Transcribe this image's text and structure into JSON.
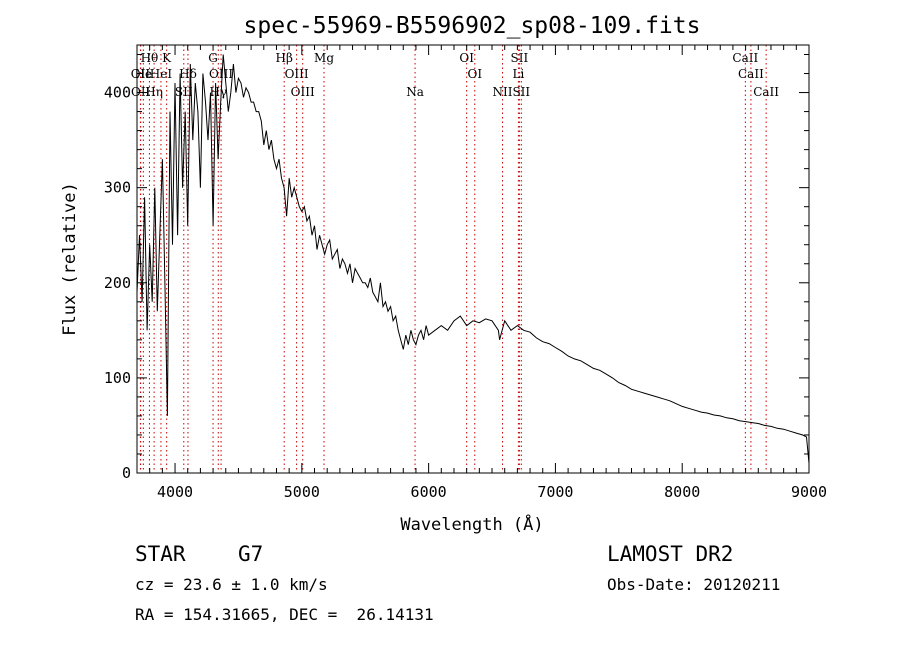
{
  "chart_data": {
    "type": "line",
    "title": "spec-55969-B5596902_sp08-109.fits",
    "xlabel": "Wavelength (Å)",
    "ylabel": "Flux (relative)",
    "xlim": [
      3700,
      9000
    ],
    "ylim": [
      0,
      450
    ],
    "xticks": [
      "4000",
      "5000",
      "6000",
      "7000",
      "8000",
      "9000"
    ],
    "xtick_values": [
      4000,
      5000,
      6000,
      7000,
      8000,
      9000
    ],
    "yticks": [
      "0",
      "100",
      "200",
      "300",
      "400"
    ],
    "ytick_values": [
      0,
      100,
      200,
      300,
      400
    ],
    "grid": false,
    "line_color": "#000000",
    "marker_color": "#cc0000",
    "series": [
      {
        "x": [
          3700,
          3720,
          3740,
          3760,
          3780,
          3800,
          3820,
          3840,
          3860,
          3880,
          3900,
          3920,
          3940,
          3960,
          3980,
          4000,
          4020,
          4040,
          4060,
          4080,
          4100,
          4120,
          4140,
          4160,
          4180,
          4200,
          4220,
          4240,
          4260,
          4280,
          4300,
          4320,
          4340,
          4360,
          4380,
          4400,
          4420,
          4440,
          4460,
          4480,
          4500,
          4520,
          4540,
          4560,
          4580,
          4600,
          4620,
          4640,
          4660,
          4680,
          4700,
          4720,
          4740,
          4760,
          4780,
          4800,
          4820,
          4840,
          4860,
          4880,
          4900,
          4920,
          4940,
          4960,
          4980,
          5000,
          5020,
          5040,
          5060,
          5080,
          5100,
          5120,
          5140,
          5160,
          5180,
          5200,
          5220,
          5240,
          5260,
          5280,
          5300,
          5320,
          5340,
          5360,
          5380,
          5400,
          5420,
          5440,
          5460,
          5480,
          5500,
          5520,
          5540,
          5560,
          5580,
          5600,
          5620,
          5640,
          5660,
          5680,
          5700,
          5720,
          5740,
          5760,
          5780,
          5800,
          5820,
          5840,
          5860,
          5880,
          5900,
          5920,
          5940,
          5960,
          5980,
          6000,
          6050,
          6100,
          6150,
          6200,
          6250,
          6300,
          6350,
          6400,
          6450,
          6500,
          6550,
          6560,
          6600,
          6650,
          6700,
          6750,
          6800,
          6850,
          6900,
          6950,
          7000,
          7050,
          7100,
          7150,
          7200,
          7250,
          7300,
          7350,
          7400,
          7450,
          7500,
          7550,
          7600,
          7650,
          7700,
          7750,
          7800,
          7850,
          7900,
          7950,
          8000,
          8050,
          8100,
          8150,
          8200,
          8250,
          8300,
          8350,
          8400,
          8450,
          8500,
          8550,
          8600,
          8650,
          8700,
          8750,
          8800,
          8850,
          8900,
          8950,
          8980,
          9000
        ],
        "y": [
          190,
          250,
          180,
          290,
          150,
          240,
          180,
          300,
          170,
          250,
          330,
          200,
          60,
          380,
          240,
          410,
          250,
          420,
          300,
          380,
          260,
          430,
          350,
          410,
          380,
          300,
          420,
          390,
          350,
          400,
          260,
          410,
          330,
          390,
          440,
          410,
          380,
          400,
          430,
          400,
          415,
          410,
          395,
          405,
          400,
          390,
          390,
          380,
          380,
          370,
          345,
          360,
          340,
          350,
          330,
          320,
          330,
          310,
          300,
          270,
          310,
          290,
          300,
          290,
          280,
          275,
          280,
          265,
          270,
          250,
          260,
          235,
          250,
          240,
          230,
          240,
          245,
          225,
          230,
          235,
          215,
          225,
          220,
          210,
          220,
          200,
          215,
          210,
          205,
          200,
          200,
          195,
          205,
          190,
          185,
          180,
          200,
          175,
          180,
          170,
          175,
          160,
          165,
          150,
          140,
          130,
          145,
          135,
          150,
          140,
          135,
          145,
          150,
          140,
          155,
          145,
          150,
          155,
          150,
          160,
          165,
          155,
          160,
          158,
          162,
          160,
          150,
          140,
          160,
          150,
          155,
          150,
          148,
          142,
          138,
          136,
          132,
          128,
          123,
          120,
          118,
          114,
          110,
          108,
          104,
          100,
          95,
          92,
          88,
          86,
          84,
          82,
          80,
          78,
          76,
          73,
          70,
          68,
          66,
          64,
          63,
          61,
          60,
          58,
          57,
          55,
          54,
          53,
          52,
          50,
          49,
          47,
          46,
          44,
          42,
          40,
          38,
          10
        ]
      }
    ],
    "line_markers": [
      {
        "label": "Hθ",
        "x": 3798,
        "row": 1
      },
      {
        "label": "OII",
        "x": 3727,
        "row": 2
      },
      {
        "label": "OII",
        "x": 3729,
        "row": 3
      },
      {
        "label": "He",
        "x": 3750,
        "row": 2
      },
      {
        "label": "Hη",
        "x": 3835,
        "row": 3
      },
      {
        "label": "K",
        "x": 3934,
        "row": 1
      },
      {
        "label": "HeI",
        "x": 3889,
        "row": 2
      },
      {
        "label": "Hδ",
        "x": 4102,
        "row": 2
      },
      {
        "label": "SII",
        "x": 4069,
        "row": 3
      },
      {
        "label": "G",
        "x": 4300,
        "row": 1
      },
      {
        "label": "OIII",
        "x": 4363,
        "row": 2
      },
      {
        "label": "Hγ",
        "x": 4341,
        "row": 3
      },
      {
        "label": "Hβ",
        "x": 4861,
        "row": 1
      },
      {
        "label": "OIII",
        "x": 4959,
        "row": 2
      },
      {
        "label": "OIII",
        "x": 5007,
        "row": 3
      },
      {
        "label": "Mg",
        "x": 5175,
        "row": 1
      },
      {
        "label": "Na",
        "x": 5893,
        "row": 3
      },
      {
        "label": "OI",
        "x": 6300,
        "row": 1
      },
      {
        "label": "OI",
        "x": 6364,
        "row": 2
      },
      {
        "label": "SII",
        "x": 6716,
        "row": 1
      },
      {
        "label": "Li",
        "x": 6708,
        "row": 2
      },
      {
        "label": "NII",
        "x": 6583,
        "row": 3
      },
      {
        "label": "SII",
        "x": 6731,
        "row": 3
      },
      {
        "label": "CaII",
        "x": 8498,
        "row": 1
      },
      {
        "label": "CaII",
        "x": 8542,
        "row": 2
      },
      {
        "label": "CaII",
        "x": 8662,
        "row": 3
      }
    ]
  },
  "info": {
    "class": "STAR",
    "subclass": "G7",
    "survey": "LAMOST DR2",
    "cz": "cz = 23.6 ± 1.0 km/s",
    "obs_date": "Obs-Date: 20120211",
    "coords": "RA = 154.31665, DEC =  26.14131"
  }
}
